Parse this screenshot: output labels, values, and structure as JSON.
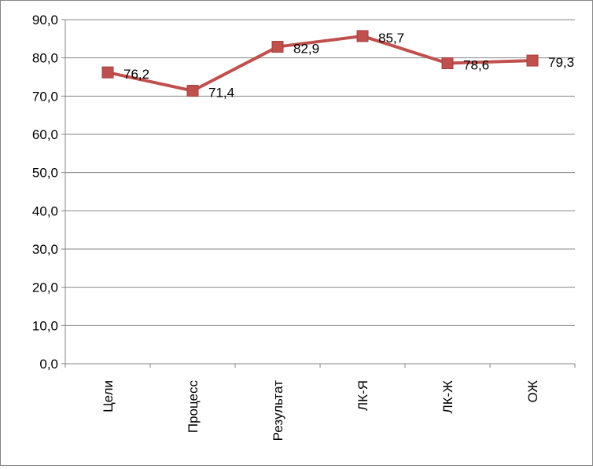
{
  "chart_data": {
    "type": "line",
    "title": "",
    "xlabel": "",
    "ylabel": "",
    "categories": [
      "Цели",
      "Процесс",
      "Результат",
      "ЛК-Я",
      "ЛК-Ж",
      "ОЖ"
    ],
    "series": [
      {
        "values": [
          76.2,
          71.4,
          82.9,
          85.7,
          78.6,
          79.3
        ],
        "color": "#C0504D"
      }
    ],
    "data_labels": [
      "76,2",
      "71,4",
      "82,9",
      "85,7",
      "78,6",
      "79,3"
    ],
    "y_tick_labels": [
      "0,0",
      "10,0",
      "20,0",
      "30,0",
      "40,0",
      "50,0",
      "60,0",
      "70,0",
      "80,0",
      "90,0"
    ],
    "ylim": [
      0,
      90
    ],
    "y_step": 10,
    "grid": true,
    "legend": "none",
    "category_label_orientation": "vertical",
    "colors": {
      "gridline": "#868686",
      "axis": "#868686",
      "line": "#C0504D"
    }
  }
}
